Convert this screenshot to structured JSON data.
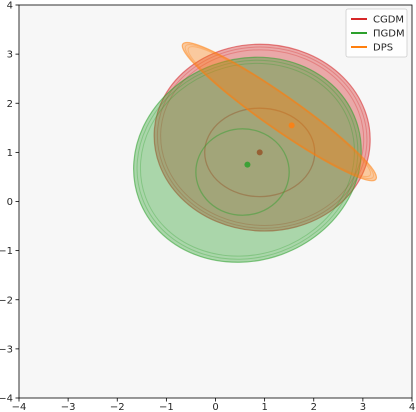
{
  "chart_data": {
    "type": "scatter",
    "title": "",
    "xlabel": "",
    "ylabel": "",
    "xlim": [
      -4,
      4
    ],
    "ylim": [
      -4,
      4
    ],
    "grid": false,
    "x_ticks": [
      -4,
      -3,
      -2,
      -1,
      0,
      1,
      2,
      3,
      4
    ],
    "y_ticks": [
      -4,
      -3,
      -2,
      -1,
      0,
      1,
      2,
      3,
      4
    ],
    "x_tick_labels": [
      "−4",
      "−3",
      "−2",
      "−1",
      "0",
      "1",
      "2",
      "3",
      "4"
    ],
    "y_tick_labels": [
      "−4",
      "−3",
      "−2",
      "−1",
      "0",
      "1",
      "2",
      "3",
      "4"
    ],
    "legend_position": "top-right",
    "series": [
      {
        "name": "CGDM",
        "color": "#d62728",
        "mean": [
          0.9,
          1.0
        ],
        "ellipses": [
          {
            "center": [
              0.9,
              1.0
            ],
            "rx": 1.12,
            "ry": 0.9,
            "angle": 0,
            "fill": false
          },
          {
            "center": [
              0.95,
              1.3
            ],
            "rx": 2.2,
            "ry": 1.9,
            "angle": -4,
            "fill": true
          }
        ]
      },
      {
        "name": "ΠGDM",
        "color": "#2ca02c",
        "mean": [
          0.65,
          0.75
        ],
        "ellipses": [
          {
            "center": [
              0.55,
              0.6
            ],
            "rx": 0.95,
            "ry": 0.88,
            "angle": 0,
            "fill": false
          },
          {
            "center": [
              0.65,
              0.85
            ],
            "rx": 2.35,
            "ry": 2.05,
            "angle": 20,
            "fill": true
          }
        ]
      },
      {
        "name": "DPS",
        "color": "#ff7f0e",
        "mean": [
          1.55,
          1.55
        ],
        "ellipses": [
          {
            "center": [
              1.3,
              1.83
            ],
            "rx": 2.4,
            "ry": 0.35,
            "angle": -35,
            "fill": true
          }
        ]
      }
    ]
  }
}
